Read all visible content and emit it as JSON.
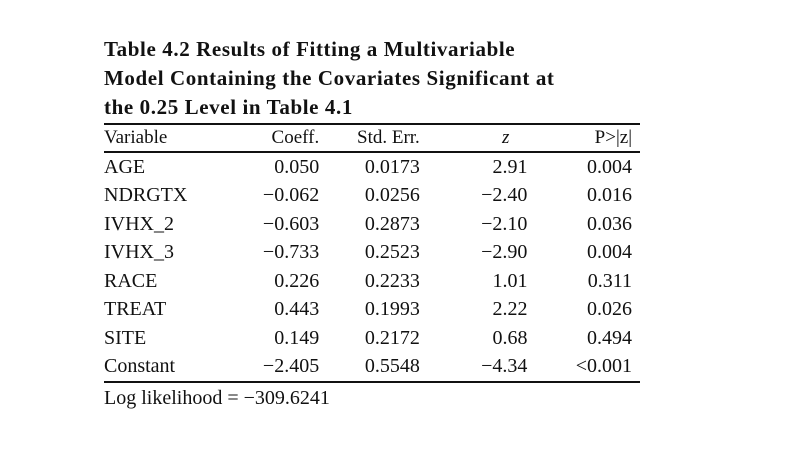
{
  "title_lines": [
    "Table 4.2 Results of Fitting a Multivariable",
    "Model Containing the Covariates Significant at",
    "the 0.25 Level in Table 4.1"
  ],
  "columns": [
    "Variable",
    "Coeff.",
    "Std. Err.",
    "z",
    "P>|z|"
  ],
  "rows": [
    [
      "AGE",
      "0.050",
      "0.0173",
      "2.91",
      "0.004"
    ],
    [
      "NDRGTX",
      "−0.062",
      "0.0256",
      "−2.40",
      "0.016"
    ],
    [
      "IVHX_2",
      "−0.603",
      "0.2873",
      "−2.10",
      "0.036"
    ],
    [
      "IVHX_3",
      "−0.733",
      "0.2523",
      "−2.90",
      "0.004"
    ],
    [
      "RACE",
      "0.226",
      "0.2233",
      "1.01",
      "0.311"
    ],
    [
      "TREAT",
      "0.443",
      "0.1993",
      "2.22",
      "0.026"
    ],
    [
      "SITE",
      "0.149",
      "0.2172",
      "0.68",
      "0.494"
    ],
    [
      "Constant",
      "−2.405",
      "0.5548",
      "−4.34",
      "<0.001"
    ]
  ],
  "footnote": "Log likelihood = −309.6241"
}
